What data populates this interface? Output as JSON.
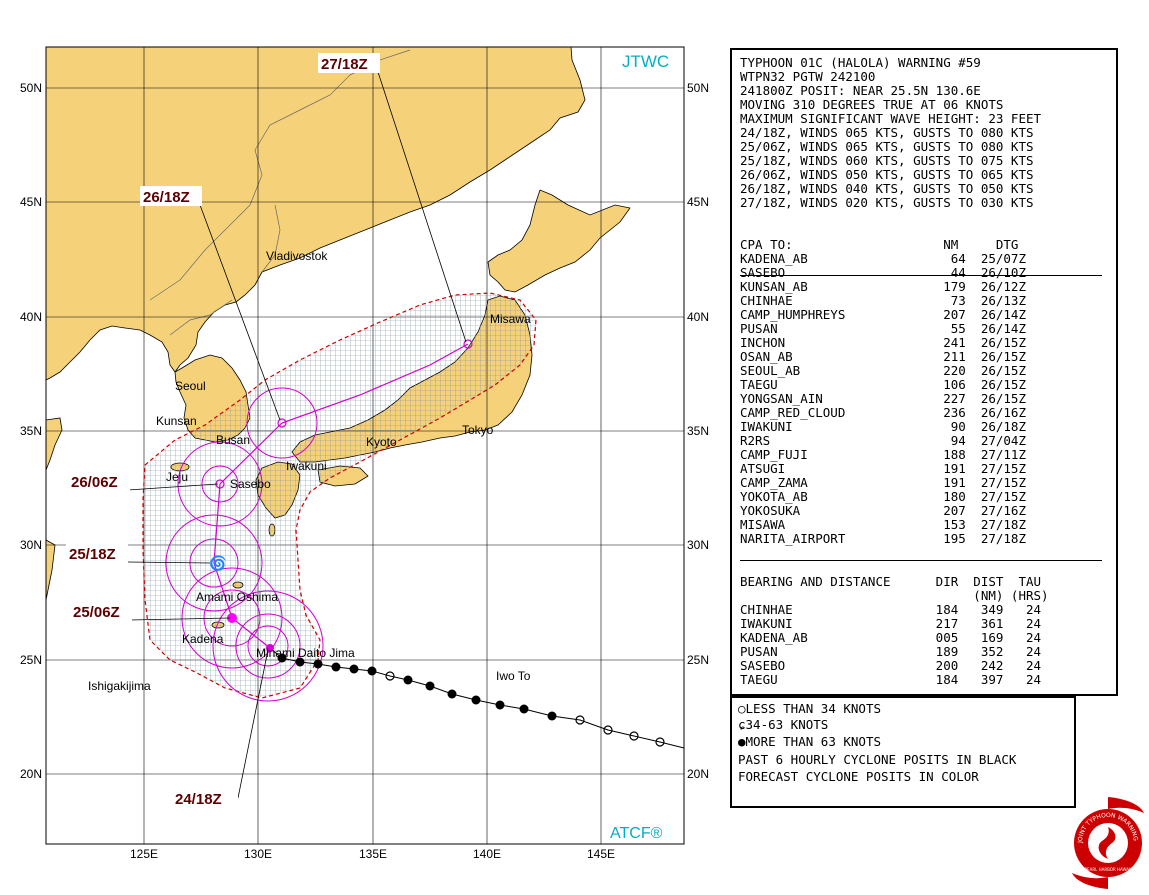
{
  "map": {
    "brand_top": "JTWC",
    "brand_bottom": "ATCF®",
    "lat_labels": [
      "50N",
      "45N",
      "40N",
      "35N",
      "30N",
      "25N",
      "20N"
    ],
    "lon_labels": [
      "125E",
      "130E",
      "135E",
      "140E",
      "145E"
    ],
    "places": [
      {
        "name": "Vladivostok"
      },
      {
        "name": "Misawa"
      },
      {
        "name": "Seoul"
      },
      {
        "name": "Kunsan"
      },
      {
        "name": "Busan"
      },
      {
        "name": "Iwakuni"
      },
      {
        "name": "Kyoto"
      },
      {
        "name": "Tokyo"
      },
      {
        "name": "Jeju"
      },
      {
        "name": "Sasebo"
      },
      {
        "name": "Amami Oshima"
      },
      {
        "name": "Kadena"
      },
      {
        "name": "Minami Daito Jima"
      },
      {
        "name": "Iwo To"
      },
      {
        "name": "Ishigakijima"
      }
    ],
    "forecast_tags": [
      "27/18Z",
      "26/18Z",
      "26/06Z",
      "25/18Z",
      "25/06Z",
      "24/18Z"
    ],
    "colors": {
      "land": "#f5d17a",
      "ocean": "#ffffff",
      "track": "#d200d2",
      "danger": "#cc0000",
      "tag": "#5c0000",
      "brand": "#00b0c0"
    }
  },
  "warning": {
    "lines": [
      "TYPHOON 01C (HALOLA) WARNING #59",
      "WTPN32 PGTW 242100",
      "241800Z POSIT: NEAR 25.5N 130.6E",
      "MOVING 310 DEGREES TRUE AT 06 KNOTS",
      "MAXIMUM SIGNIFICANT WAVE HEIGHT: 23 FEET",
      "24/18Z, WINDS 065 KTS, GUSTS TO 080 KTS",
      "25/06Z, WINDS 065 KTS, GUSTS TO 080 KTS",
      "25/18Z, WINDS 060 KTS, GUSTS TO 075 KTS",
      "26/06Z, WINDS 050 KTS, GUSTS TO 065 KTS",
      "26/18Z, WINDS 040 KTS, GUSTS TO 050 KTS",
      "27/18Z, WINDS 020 KTS, GUSTS TO 030 KTS"
    ],
    "cpa_header": "CPA TO:                    NM     DTG",
    "cpa": [
      "KADENA_AB                   64  25/07Z",
      "SASEBO                      44  26/10Z",
      "KUNSAN_AB                  179  26/12Z",
      "CHINHAE                     73  26/13Z",
      "CAMP_HUMPHREYS             207  26/14Z",
      "PUSAN                       55  26/14Z",
      "INCHON                     241  26/15Z",
      "OSAN_AB                    211  26/15Z",
      "SEOUL_AB                   220  26/15Z",
      "TAEGU                      106  26/15Z",
      "YONGSAN_AIN                227  26/15Z",
      "CAMP_RED_CLOUD             236  26/16Z",
      "IWAKUNI                     90  26/18Z",
      "R2RS                        94  27/04Z",
      "CAMP_FUJI                  188  27/11Z",
      "ATSUGI                     191  27/15Z",
      "CAMP_ZAMA                  191  27/15Z",
      "YOKOTA_AB                  180  27/15Z",
      "YOKOSUKA                   207  27/16Z",
      "MISAWA                     153  27/18Z",
      "NARITA_AIRPORT             195  27/18Z"
    ],
    "bd_header1": "BEARING AND DISTANCE      DIR  DIST  TAU",
    "bd_header2": "                               (NM) (HRS)",
    "bd": [
      "CHINHAE                   184   349   24",
      "IWAKUNI                   217   361   24",
      "KADENA_AB                 005   169   24",
      "PUSAN                     189   352   24",
      "SASEBO                    200   242   24",
      "TAEGU                     184   397   24"
    ]
  },
  "legend": {
    "items": [
      "LESS THAN 34 KNOTS",
      "34-63 KNOTS",
      "MORE THAN 63 KNOTS"
    ],
    "note1": "PAST 6 HOURLY CYCLONE POSITS IN BLACK",
    "note2": "FORECAST CYCLONE POSITS IN COLOR"
  },
  "seal": {
    "ring_text": "JOINT TYPHOON WARNING CENTER",
    "sub_text": "PEARL HARBOR HAWAII"
  }
}
